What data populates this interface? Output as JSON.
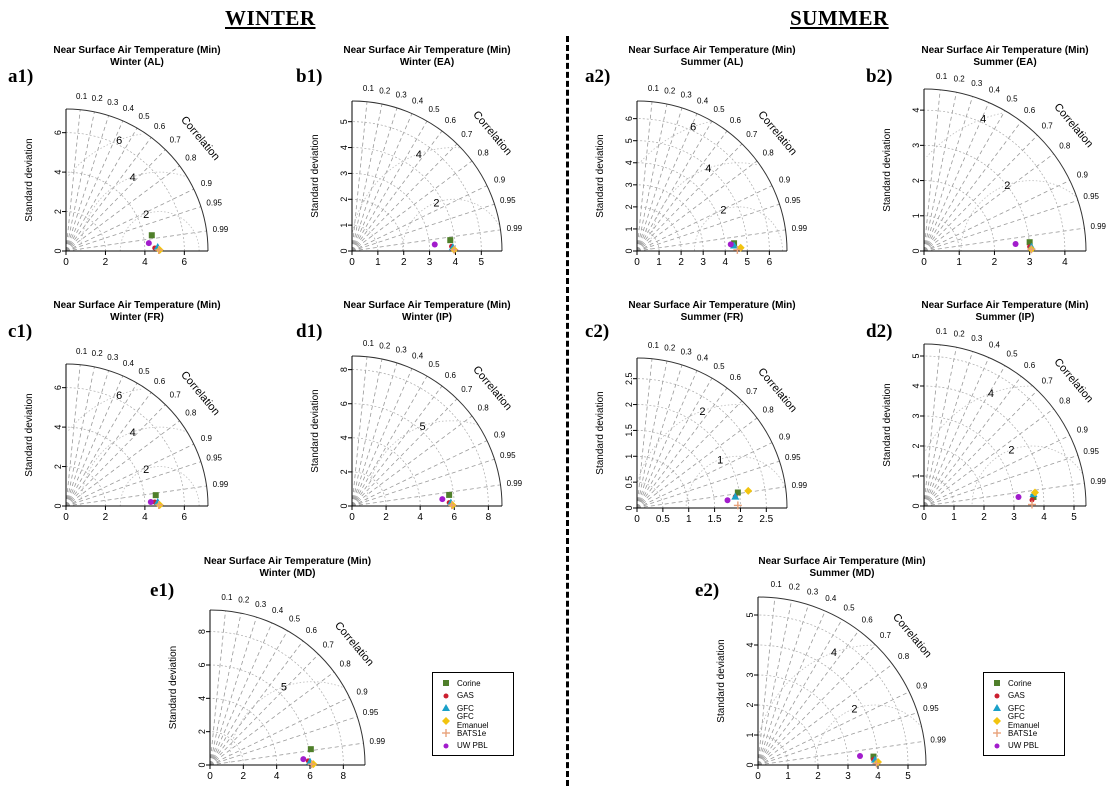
{
  "headers": {
    "winter": "WINTER",
    "summer": "SUMMER"
  },
  "labels": {
    "correlation": "Correlation",
    "std": "Standard deviation"
  },
  "colors": {
    "Corine": "#4f7f2a",
    "GAS": "#cc1f2f",
    "GFC": "#1aa0c8",
    "GFC Emanuel": "#f2c40f",
    "BATS1e": "#e8a17a",
    "UW PBL": "#a21ccc"
  },
  "markers": {
    "Corine": "square",
    "GAS": "circle",
    "GFC": "triangle",
    "GFC Emanuel": "diamond",
    "BATS1e": "plus",
    "UW PBL": "circle"
  },
  "legend": [
    "Corine",
    "GAS",
    "GFC",
    "GFC Emanuel",
    "BATS1e",
    "UW PBL"
  ],
  "chart_data": [
    {
      "id": "a1",
      "panel_label": "a1)",
      "type": "scatter",
      "title": "Near Surface Air Temperature (Min)",
      "subtitle": "Winter (AL)",
      "xlabel": "",
      "ylabel": "Standard deviation",
      "ticks": [
        0,
        2,
        4,
        6
      ],
      "max": 7.2,
      "rms_labels": [
        2,
        4,
        6
      ],
      "ref_sd": 4.75,
      "points": [
        {
          "series": "Corine",
          "x": 4.35,
          "y": 0.8
        },
        {
          "series": "GAS",
          "x": 4.5,
          "y": 0.15
        },
        {
          "series": "GFC",
          "x": 4.65,
          "y": 0.2
        },
        {
          "series": "GFC Emanuel",
          "x": 4.75,
          "y": 0.05
        },
        {
          "series": "BATS1e",
          "x": 4.7,
          "y": 0.05
        },
        {
          "series": "UW PBL",
          "x": 4.2,
          "y": 0.4
        }
      ]
    },
    {
      "id": "b1",
      "panel_label": "b1)",
      "type": "scatter",
      "title": "Near Surface Air Temperature (Min)",
      "subtitle": "Winter (EA)",
      "xlabel": "",
      "ylabel": "Standard deviation",
      "ticks": [
        0,
        1,
        2,
        3,
        4,
        5
      ],
      "max": 5.8,
      "rms_labels": [
        2,
        4
      ],
      "ref_sd": 3.95,
      "points": [
        {
          "series": "Corine",
          "x": 3.8,
          "y": 0.42
        },
        {
          "series": "GAS",
          "x": 3.85,
          "y": 0.18
        },
        {
          "series": "GFC",
          "x": 3.9,
          "y": 0.15
        },
        {
          "series": "GFC Emanuel",
          "x": 3.95,
          "y": 0.05
        },
        {
          "series": "BATS1e",
          "x": 3.95,
          "y": 0.05
        },
        {
          "series": "UW PBL",
          "x": 3.2,
          "y": 0.25
        }
      ]
    },
    {
      "id": "a2",
      "panel_label": "a2)",
      "type": "scatter",
      "title": "Near Surface Air Temperature (Min)",
      "subtitle": "Summer (AL)",
      "xlabel": "",
      "ylabel": "Standard deviation",
      "ticks": [
        0,
        1,
        2,
        3,
        4,
        5,
        6
      ],
      "max": 6.8,
      "rms_labels": [
        2,
        4,
        6
      ],
      "ref_sd": 4.6,
      "points": [
        {
          "series": "Corine",
          "x": 4.4,
          "y": 0.35
        },
        {
          "series": "GAS",
          "x": 4.3,
          "y": 0.3
        },
        {
          "series": "GFC",
          "x": 4.4,
          "y": 0.25
        },
        {
          "series": "GFC Emanuel",
          "x": 4.7,
          "y": 0.15
        },
        {
          "series": "BATS1e",
          "x": 4.55,
          "y": 0.05
        },
        {
          "series": "UW PBL",
          "x": 4.25,
          "y": 0.3
        }
      ]
    },
    {
      "id": "b2",
      "panel_label": "b2)",
      "type": "scatter",
      "title": "Near Surface Air Temperature (Min)",
      "subtitle": "Summer (EA)",
      "xlabel": "",
      "ylabel": "Standard deviation",
      "ticks": [
        0,
        1,
        2,
        3,
        4
      ],
      "max": 4.6,
      "rms_labels": [
        2,
        4
      ],
      "ref_sd": 3.05,
      "points": [
        {
          "series": "Corine",
          "x": 3.0,
          "y": 0.25
        },
        {
          "series": "GAS",
          "x": 3.0,
          "y": 0.12
        },
        {
          "series": "GFC",
          "x": 3.05,
          "y": 0.12
        },
        {
          "series": "GFC Emanuel",
          "x": 3.05,
          "y": 0.05
        },
        {
          "series": "BATS1e",
          "x": 3.05,
          "y": 0.05
        },
        {
          "series": "UW PBL",
          "x": 2.6,
          "y": 0.2
        }
      ]
    },
    {
      "id": "c1",
      "panel_label": "c1)",
      "type": "scatter",
      "title": "Near Surface Air Temperature (Min)",
      "subtitle": "Winter (FR)",
      "xlabel": "",
      "ylabel": "Standard deviation",
      "ticks": [
        0,
        2,
        4,
        6
      ],
      "max": 7.2,
      "rms_labels": [
        2,
        4,
        6
      ],
      "ref_sd": 4.75,
      "points": [
        {
          "series": "Corine",
          "x": 4.55,
          "y": 0.55
        },
        {
          "series": "GAS",
          "x": 4.5,
          "y": 0.2
        },
        {
          "series": "GFC",
          "x": 4.65,
          "y": 0.2
        },
        {
          "series": "GFC Emanuel",
          "x": 4.75,
          "y": 0.05
        },
        {
          "series": "BATS1e",
          "x": 4.7,
          "y": 0.05
        },
        {
          "series": "UW PBL",
          "x": 4.3,
          "y": 0.2
        }
      ]
    },
    {
      "id": "d1",
      "panel_label": "d1)",
      "type": "scatter",
      "title": "Near Surface Air Temperature (Min)",
      "subtitle": "Winter (IP)",
      "xlabel": "",
      "ylabel": "Standard deviation",
      "ticks": [
        0,
        2,
        4,
        6,
        8
      ],
      "max": 8.8,
      "rms_labels": [
        5
      ],
      "ref_sd": 5.85,
      "points": [
        {
          "series": "Corine",
          "x": 5.7,
          "y": 0.65
        },
        {
          "series": "GAS",
          "x": 5.7,
          "y": 0.2
        },
        {
          "series": "GFC",
          "x": 5.8,
          "y": 0.2
        },
        {
          "series": "GFC Emanuel",
          "x": 5.9,
          "y": 0.05
        },
        {
          "series": "BATS1e",
          "x": 5.85,
          "y": 0.05
        },
        {
          "series": "UW PBL",
          "x": 5.3,
          "y": 0.4
        }
      ]
    },
    {
      "id": "c2",
      "panel_label": "c2)",
      "type": "scatter",
      "title": "Near Surface Air Temperature (Min)",
      "subtitle": "Summer (FR)",
      "xlabel": "",
      "ylabel": "Standard deviation",
      "ticks": [
        0,
        0.5,
        1,
        1.5,
        2,
        2.5
      ],
      "max": 2.9,
      "rms_labels": [
        1,
        2
      ],
      "ref_sd": 1.95,
      "points": [
        {
          "series": "Corine",
          "x": 1.95,
          "y": 0.3
        },
        {
          "series": "GAS",
          "x": 1.9,
          "y": 0.22
        },
        {
          "series": "GFC",
          "x": 1.9,
          "y": 0.22
        },
        {
          "series": "GFC Emanuel",
          "x": 2.15,
          "y": 0.33
        },
        {
          "series": "BATS1e",
          "x": 1.95,
          "y": 0.05
        },
        {
          "series": "UW PBL",
          "x": 1.75,
          "y": 0.15
        }
      ]
    },
    {
      "id": "d2",
      "panel_label": "d2)",
      "type": "scatter",
      "title": "Near Surface Air Temperature (Min)",
      "subtitle": "Summer (IP)",
      "xlabel": "",
      "ylabel": "Standard deviation",
      "ticks": [
        0,
        1,
        2,
        3,
        4,
        5
      ],
      "max": 5.4,
      "rms_labels": [
        2,
        4
      ],
      "ref_sd": 3.6,
      "points": [
        {
          "series": "Corine",
          "x": 3.65,
          "y": 0.3
        },
        {
          "series": "GAS",
          "x": 3.6,
          "y": 0.2
        },
        {
          "series": "GFC",
          "x": 3.65,
          "y": 0.4
        },
        {
          "series": "GFC Emanuel",
          "x": 3.7,
          "y": 0.45
        },
        {
          "series": "BATS1e",
          "x": 3.6,
          "y": 0.05
        },
        {
          "series": "UW PBL",
          "x": 3.15,
          "y": 0.3
        }
      ]
    },
    {
      "id": "e1",
      "panel_label": "e1)",
      "type": "scatter",
      "title": "Near Surface Air Temperature (Min)",
      "subtitle": "Winter (MD)",
      "xlabel": "",
      "ylabel": "Standard deviation",
      "ticks": [
        0,
        2,
        4,
        6,
        8
      ],
      "max": 9.3,
      "rms_labels": [
        5
      ],
      "ref_sd": 6.15,
      "points": [
        {
          "series": "Corine",
          "x": 6.05,
          "y": 0.95
        },
        {
          "series": "GAS",
          "x": 5.9,
          "y": 0.25
        },
        {
          "series": "GFC",
          "x": 6.0,
          "y": 0.2
        },
        {
          "series": "GFC Emanuel",
          "x": 6.2,
          "y": 0.05
        },
        {
          "series": "BATS1e",
          "x": 6.1,
          "y": 0.05
        },
        {
          "series": "UW PBL",
          "x": 5.6,
          "y": 0.35
        }
      ]
    },
    {
      "id": "e2",
      "panel_label": "e2)",
      "type": "scatter",
      "title": "Near Surface Air Temperature (Min)",
      "subtitle": "Summer (MD)",
      "xlabel": "",
      "ylabel": "Standard deviation",
      "ticks": [
        0,
        1,
        2,
        3,
        4,
        5
      ],
      "max": 5.6,
      "rms_labels": [
        2,
        4
      ],
      "ref_sd": 3.9,
      "points": [
        {
          "series": "Corine",
          "x": 3.85,
          "y": 0.28
        },
        {
          "series": "GAS",
          "x": 3.85,
          "y": 0.18
        },
        {
          "series": "GFC",
          "x": 3.9,
          "y": 0.18
        },
        {
          "series": "GFC Emanuel",
          "x": 4.0,
          "y": 0.1
        },
        {
          "series": "BATS1e",
          "x": 3.95,
          "y": 0.05
        },
        {
          "series": "UW PBL",
          "x": 3.4,
          "y": 0.3
        }
      ]
    }
  ],
  "correlation_ticks": [
    0.1,
    0.2,
    0.3,
    0.4,
    0.5,
    0.6,
    0.7,
    0.8,
    0.9,
    0.95,
    0.99
  ]
}
